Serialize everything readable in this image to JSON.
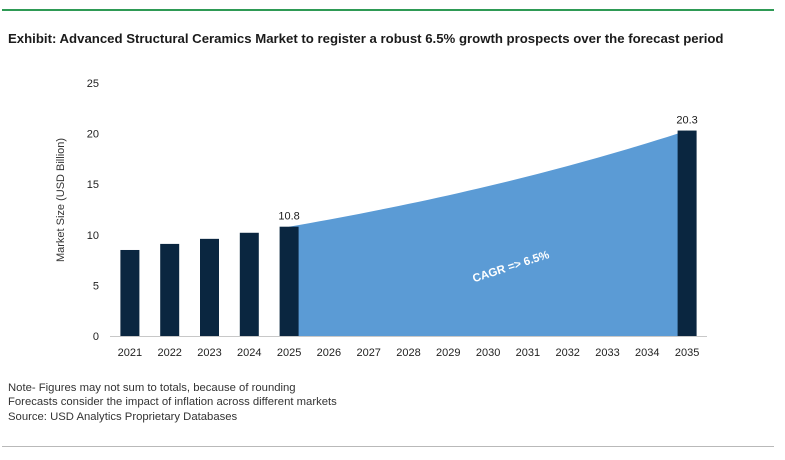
{
  "title": "Exhibit: Advanced Structural Ceramics Market to register a robust 6.5% growth prospects over the forecast period",
  "notes": [
    "Note- Figures may not sum to totals, because of rounding",
    "Forecasts consider the impact of inflation across different markets",
    "Source: USD Analytics Proprietary Databases"
  ],
  "colors": {
    "bar": "#0a2640",
    "area": "#5b9bd5",
    "accent_rule": "#2e9a55"
  },
  "chart_data": {
    "type": "bar",
    "categories": [
      "2021",
      "2022",
      "2023",
      "2024",
      "2025",
      "2026",
      "2027",
      "2028",
      "2029",
      "2030",
      "2031",
      "2032",
      "2033",
      "2034",
      "2035"
    ],
    "values": [
      8.5,
      9.1,
      9.6,
      10.2,
      10.8,
      null,
      null,
      null,
      null,
      null,
      null,
      null,
      null,
      null,
      20.3
    ],
    "data_labels": {
      "2025": "10.8",
      "2035": "20.3"
    },
    "forecast_area": {
      "from": "2025",
      "to": "2035",
      "start_value": 10.8,
      "end_value": 20.3,
      "label": "CAGR =>  6.5%"
    },
    "ylabel": "Market Size (USD Billion)",
    "xlabel": "",
    "ylim": [
      0,
      25
    ],
    "yticks": [
      0,
      5,
      10,
      15,
      20,
      25
    ],
    "grid": false,
    "legend": "none"
  }
}
